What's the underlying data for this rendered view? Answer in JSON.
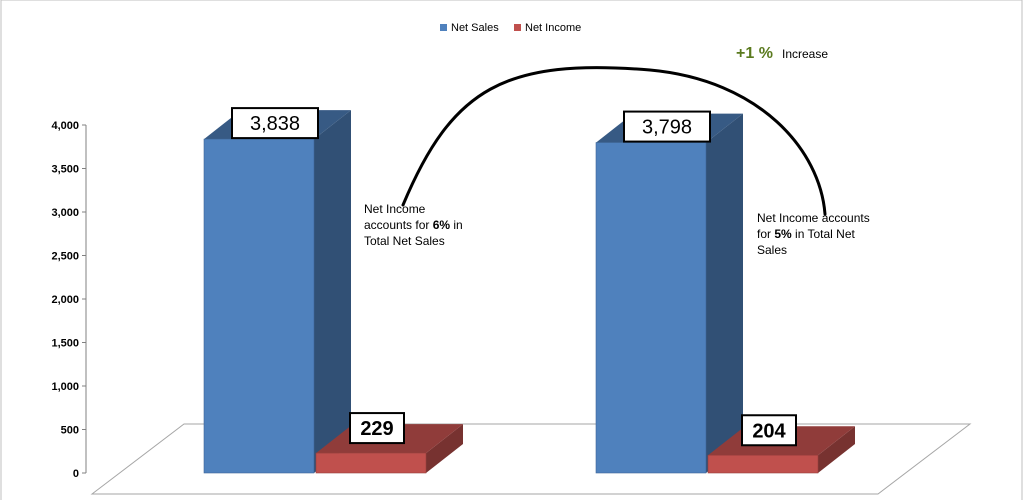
{
  "chart_data": {
    "type": "bar",
    "categories": [
      "",
      ""
    ],
    "series": [
      {
        "name": "Net Sales",
        "color": "#4f81bd",
        "values": [
          3838,
          3798
        ],
        "labels": [
          "3,838",
          "3,798"
        ]
      },
      {
        "name": "Net Income",
        "color": "#c0504d",
        "values": [
          229,
          204
        ],
        "labels": [
          "229",
          "204"
        ]
      }
    ],
    "ylim": [
      0,
      4000
    ],
    "yticks": [
      0,
      500,
      1000,
      1500,
      2000,
      2500,
      3000,
      3500,
      4000
    ],
    "ytick_labels": [
      "0",
      "500",
      "1,000",
      "1,500",
      "2,000",
      "2,500",
      "3,000",
      "3,500",
      "4,000"
    ],
    "legend": "top",
    "style": "3d-column",
    "annotations": {
      "increase": {
        "value": "+1 %",
        "text": "Increase"
      },
      "notes": [
        {
          "lines": [
            [
              "Net Income",
              ""
            ],
            [
              "accounts for ",
              "6%",
              " in"
            ],
            [
              "Total Net Sales",
              ""
            ]
          ]
        },
        {
          "lines": [
            [
              "Net Income accounts",
              ""
            ],
            [
              "for ",
              "5%",
              " in Total Net"
            ],
            [
              "Sales",
              ""
            ]
          ]
        }
      ]
    }
  }
}
